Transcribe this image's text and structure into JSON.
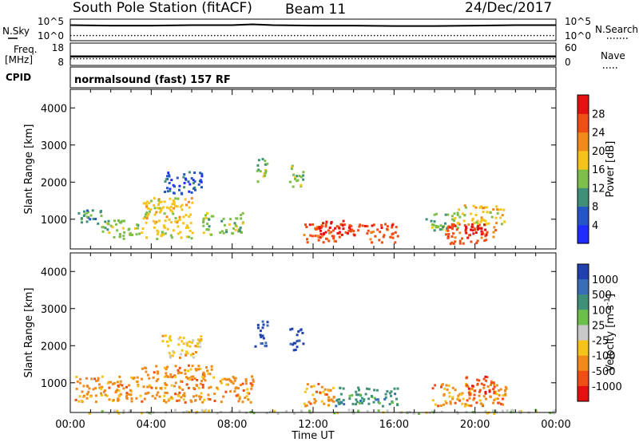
{
  "header": {
    "station": "South Pole Station (fitACF)",
    "beam": "Beam 11",
    "date": "24/Dec/2017"
  },
  "chart_data": [
    {
      "type": "line",
      "panel": "noise",
      "left_label": "N.Sky",
      "right_label": "N.Search",
      "left_ticks": [
        "10^5",
        "10^0"
      ],
      "right_ticks": [
        "10^5",
        "10^0"
      ],
      "x": [
        0,
        2,
        4,
        6,
        8,
        9,
        10,
        12,
        14,
        16,
        18,
        20,
        22,
        24
      ],
      "series": [
        {
          "values": [
            3.6,
            3.5,
            3.5,
            3.6,
            3.6,
            3.8,
            3.6,
            3.5,
            3.5,
            3.4,
            3.4,
            3.5,
            3.6,
            3.6
          ]
        },
        {
          "values": [
            1.2,
            1.2,
            1.2,
            1.2,
            1.2,
            1.2,
            1.2,
            1.2,
            1.2,
            1.2,
            1.2,
            1.2,
            1.2,
            1.2
          ]
        }
      ]
    },
    {
      "type": "line",
      "panel": "frequency",
      "left_label_lines": [
        "Freq.",
        "[MHz]"
      ],
      "right_label": "Nave",
      "left_ticks": [
        "18",
        "8"
      ],
      "right_ticks": [
        "60",
        "0"
      ],
      "freq_mhz": 12,
      "nave": 18
    },
    {
      "type": "heatmap",
      "panel": "cpid",
      "label": "CPID",
      "program": "normalsound (fast) 157 RF"
    },
    {
      "type": "heatmap",
      "panel": "power",
      "ylabel": "Slant Range [km]",
      "yticks": [
        "1000",
        "2000",
        "3000",
        "4000"
      ],
      "ylim": [
        200,
        4500
      ],
      "xlim": [
        0,
        24
      ],
      "colorbar_label": "Power [dB]",
      "colorbar_ticks": [
        "4",
        "8",
        "12",
        "16",
        "20",
        "24",
        "28"
      ],
      "colors": [
        "#1f2bff",
        "#2456c8",
        "#3f8f79",
        "#7dbf4a",
        "#f5c419",
        "#f08a1a",
        "#f04e14",
        "#e61010"
      ],
      "regions": [
        {
          "t0": 0.2,
          "t1": 1.5,
          "r0": 900,
          "r1": 1300,
          "level": 2
        },
        {
          "t0": 1.5,
          "t1": 3.5,
          "r0": 500,
          "r1": 1000,
          "level": 3
        },
        {
          "t0": 3.5,
          "t1": 6.0,
          "r0": 500,
          "r1": 1600,
          "level": 4
        },
        {
          "t0": 4.5,
          "t1": 6.5,
          "r0": 1700,
          "r1": 2300,
          "level": 1
        },
        {
          "t0": 6.5,
          "t1": 8.5,
          "r0": 600,
          "r1": 1200,
          "level": 3
        },
        {
          "t0": 9.1,
          "t1": 9.7,
          "r0": 2000,
          "r1": 2700,
          "level": 3
        },
        {
          "t0": 10.8,
          "t1": 11.5,
          "r0": 1900,
          "r1": 2500,
          "level": 3
        },
        {
          "t0": 11.5,
          "t1": 16.2,
          "r0": 400,
          "r1": 900,
          "level": 6
        },
        {
          "t0": 12.2,
          "t1": 13.8,
          "r0": 600,
          "r1": 1000,
          "level": 7
        },
        {
          "t0": 17.5,
          "t1": 19.2,
          "r0": 700,
          "r1": 1200,
          "level": 3
        },
        {
          "t0": 18.5,
          "t1": 21.0,
          "r0": 350,
          "r1": 900,
          "level": 6
        },
        {
          "t0": 19.5,
          "t1": 20.6,
          "r0": 500,
          "r1": 900,
          "level": 7
        },
        {
          "t0": 19.0,
          "t1": 21.5,
          "r0": 900,
          "r1": 1400,
          "level": 4
        }
      ]
    },
    {
      "type": "heatmap",
      "panel": "velocity",
      "ylabel": "Slant Range [km]",
      "yticks": [
        "1000",
        "2000",
        "3000",
        "4000"
      ],
      "ylim": [
        200,
        4500
      ],
      "xlim": [
        0,
        24
      ],
      "xticks": [
        "00:00",
        "04:00",
        "08:00",
        "12:00",
        "16:00",
        "20:00",
        "00:00"
      ],
      "xlabel": "Time UT",
      "colorbar_label": "Velocity [m s",
      "colorbar_label_sup": "-1",
      "colorbar_label_end": "]",
      "colorbar_ticks": [
        "1000",
        "500",
        "100",
        "25",
        "-25",
        "-100",
        "-500",
        "-1000"
      ],
      "colors": [
        "#2040b0",
        "#3a6db8",
        "#3f8f79",
        "#6cc04a",
        "#c8c8c8",
        "#f5c419",
        "#f08a1a",
        "#f04e14",
        "#e61010"
      ],
      "regions": [
        {
          "t0": 0.2,
          "t1": 3.5,
          "r0": 500,
          "r1": 1200,
          "level": 6
        },
        {
          "t0": 3.5,
          "t1": 7.0,
          "r0": 500,
          "r1": 1500,
          "level": 6
        },
        {
          "t0": 4.5,
          "t1": 6.5,
          "r0": 1700,
          "r1": 2300,
          "level": 5
        },
        {
          "t0": 7.0,
          "t1": 9.0,
          "r0": 500,
          "r1": 1200,
          "level": 6
        },
        {
          "t0": 9.1,
          "t1": 9.7,
          "r0": 2000,
          "r1": 2700,
          "level": 0
        },
        {
          "t0": 10.8,
          "t1": 11.5,
          "r0": 1900,
          "r1": 2500,
          "level": 0
        },
        {
          "t0": 11.5,
          "t1": 13.0,
          "r0": 400,
          "r1": 1000,
          "level": 6
        },
        {
          "t0": 13.0,
          "t1": 16.2,
          "r0": 400,
          "r1": 900,
          "level": 2
        },
        {
          "t0": 17.8,
          "t1": 21.5,
          "r0": 400,
          "r1": 1000,
          "level": 6
        },
        {
          "t0": 19.5,
          "t1": 21.0,
          "r0": 700,
          "r1": 1200,
          "level": 7
        },
        {
          "t0": 0.2,
          "t1": 24,
          "r0": 200,
          "r1": 300,
          "level": 4
        }
      ]
    }
  ]
}
